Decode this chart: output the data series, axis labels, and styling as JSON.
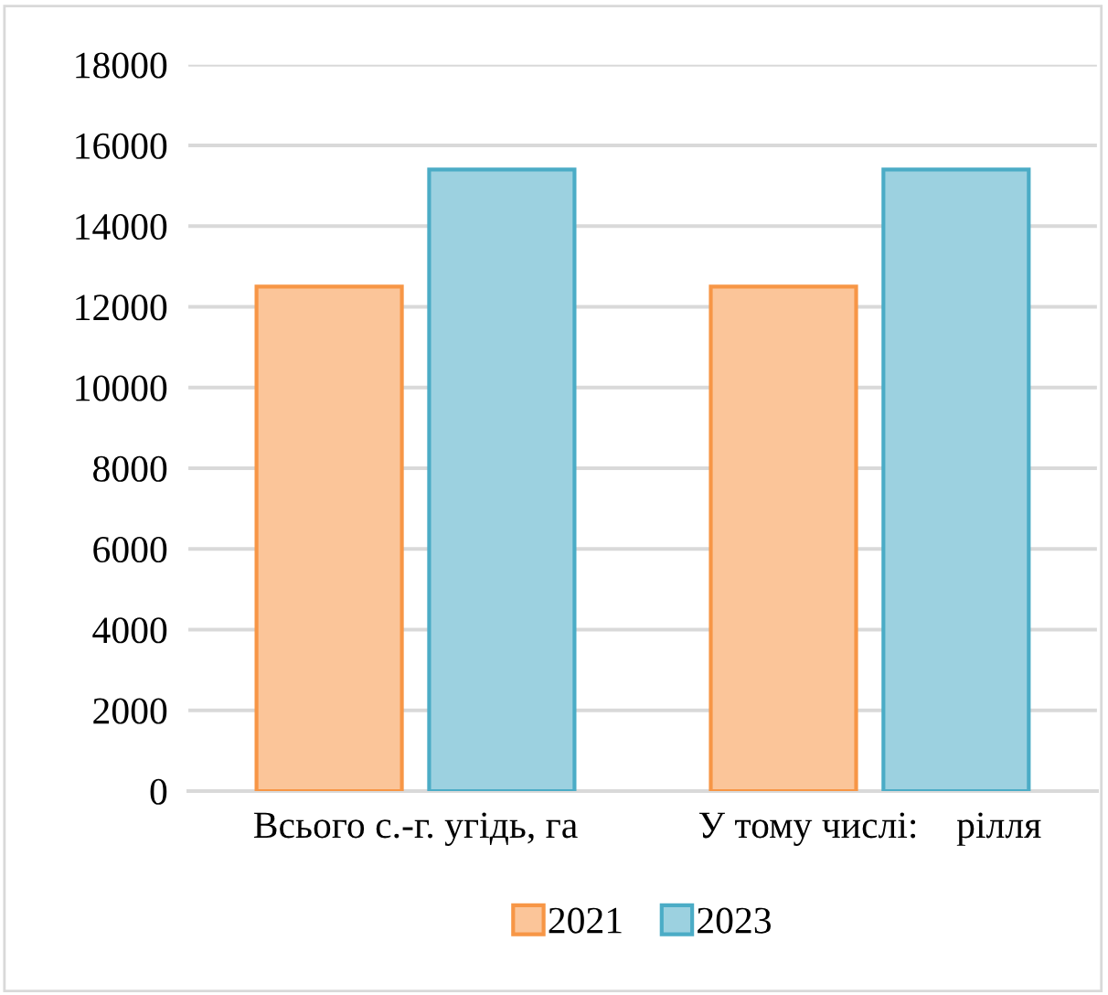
{
  "chart_data": {
    "type": "bar",
    "categories": [
      "Всього с.-г. угідь, га",
      "У тому числі:    рілля"
    ],
    "series": [
      {
        "name": "2021",
        "color": "#f79646",
        "values": [
          12500,
          12500
        ]
      },
      {
        "name": "2023",
        "color": "#4bacc6",
        "values": [
          15400,
          15400
        ]
      }
    ],
    "ylim": [
      0,
      18000
    ],
    "yticks": [
      0,
      2000,
      4000,
      6000,
      8000,
      10000,
      12000,
      14000,
      16000,
      18000
    ],
    "grid": "y",
    "legend": "bottom"
  }
}
